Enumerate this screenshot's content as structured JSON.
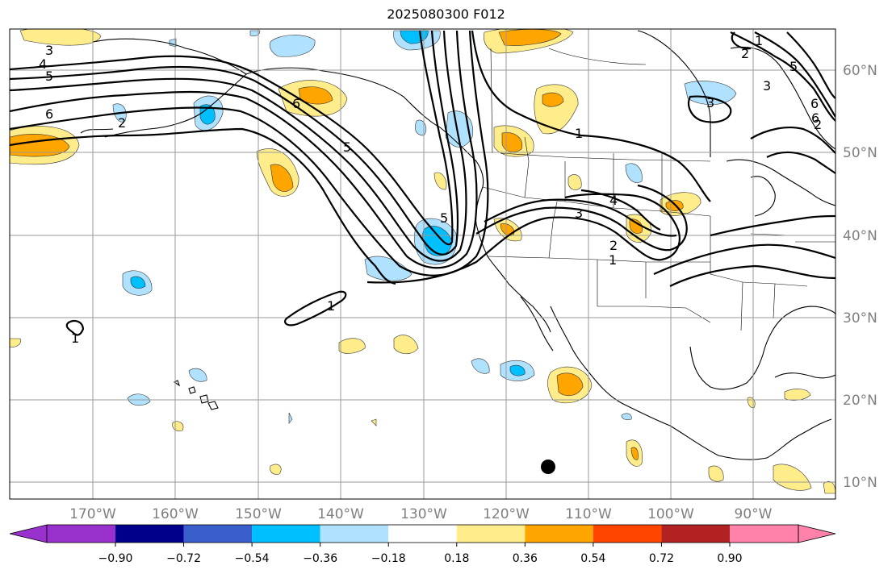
{
  "title": "2025080300 F012",
  "longitude_labels": [
    "170°W",
    "160°W",
    "150°W",
    "140°W",
    "130°W",
    "120°W",
    "110°W",
    "100°W",
    "90°W"
  ],
  "latitude_labels": [
    "60°N",
    "50°N",
    "40°N",
    "30°N",
    "20°N",
    "10°N"
  ],
  "colorbar": {
    "tick_labels": [
      "−0.90",
      "−0.72",
      "−0.54",
      "−0.36",
      "−0.18",
      "0.18",
      "0.36",
      "0.54",
      "0.72",
      "0.90"
    ],
    "colors": [
      "#9932cc",
      "#00008b",
      "#3a5fcd",
      "#00bfff",
      "#b0e2ff",
      "#ffffff",
      "#ffec8b",
      "#ffa500",
      "#ff4500",
      "#b22222",
      "#ff82ab"
    ]
  },
  "contour_labels": [
    "3",
    "4",
    "5",
    "6",
    "2",
    "5",
    "6",
    "1",
    "5",
    "4",
    "3",
    "2",
    "1",
    "6",
    "5",
    "1",
    "1",
    "2",
    "3",
    "3",
    "6",
    "2",
    "1"
  ],
  "colors": {
    "neg_light": "#b0e2ff",
    "neg_medium": "#00bfff",
    "pos_light": "#ffec8b",
    "pos_medium": "#ffa500",
    "grid": "#9a9a9a",
    "marker": "#000000"
  }
}
